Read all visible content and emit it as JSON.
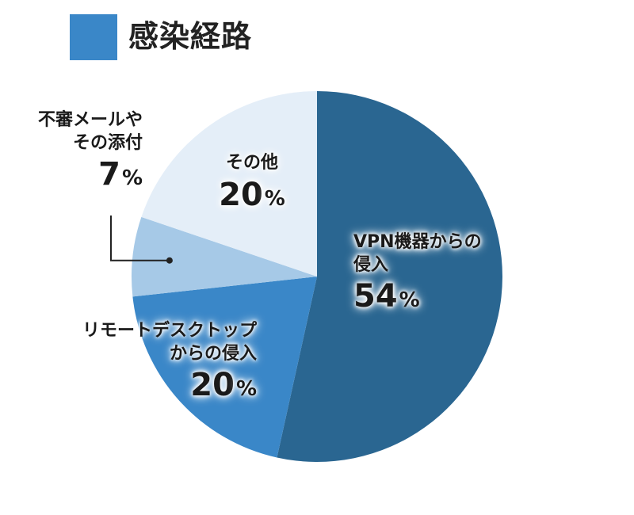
{
  "legend": {
    "title": "感染経路",
    "color": "#3a87c8"
  },
  "chart_data": {
    "type": "pie",
    "title": "",
    "categories": [
      "VPN機器からの侵入",
      "リモートデスクトップからの侵入",
      "不審メールやその添付",
      "その他"
    ],
    "values": [
      54,
      20,
      7,
      20
    ],
    "unit": "%",
    "colors": [
      "#2a6691",
      "#3a87c8",
      "#a6c9e7",
      "#e4eef8"
    ],
    "labels": [
      {
        "line1": "VPN機器からの",
        "line2": "侵入",
        "value": "54",
        "unit": "%"
      },
      {
        "line1": "リモートデスクトップ",
        "line2": "からの侵入",
        "value": "20",
        "unit": "%"
      },
      {
        "line1": "不審メールや",
        "line2": "その添付",
        "value": "7",
        "unit": "%"
      },
      {
        "line1": "その他",
        "line2": "",
        "value": "20",
        "unit": "%"
      }
    ]
  }
}
